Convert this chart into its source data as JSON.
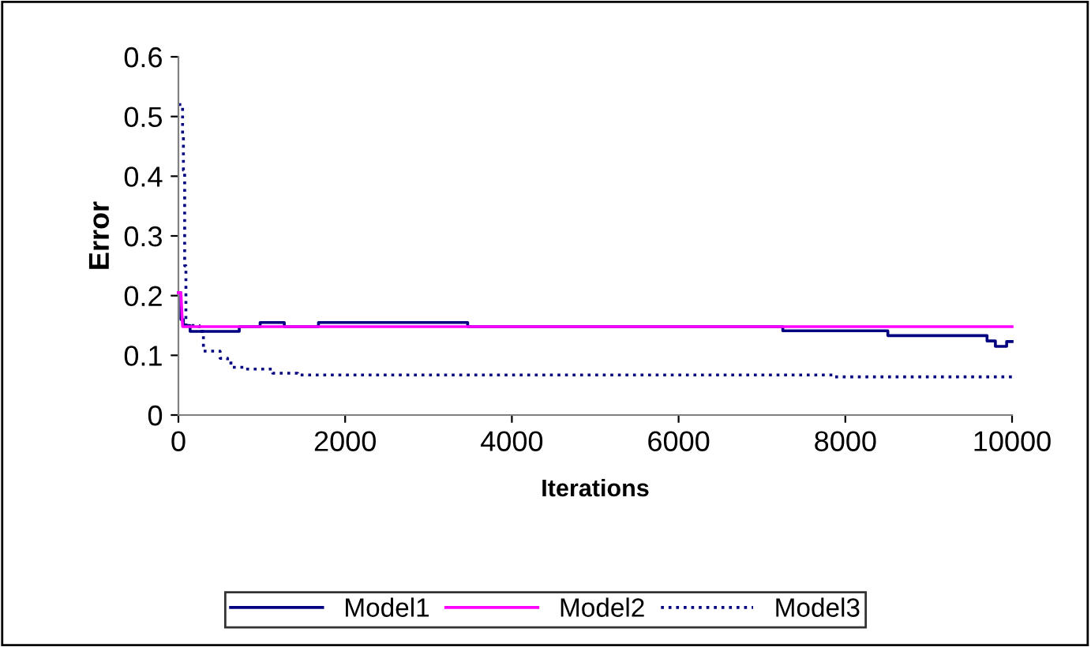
{
  "chart_data": {
    "type": "step",
    "xlabel": "Iterations",
    "ylabel": "Error",
    "xlim": [
      0,
      10000
    ],
    "xticks": [
      0,
      2000,
      4000,
      6000,
      8000,
      10000
    ],
    "ylim": [
      0,
      0.6
    ],
    "yticks": [
      0,
      0.1,
      0.2,
      0.3,
      0.4,
      0.5,
      0.6
    ],
    "grid": false,
    "legend": "bottom",
    "marker": "none",
    "series": [
      {
        "name": "Model1",
        "color": "#000080",
        "line_style": "solid",
        "x": [
          0,
          30,
          60,
          140,
          730,
          980,
          1270,
          1680,
          3470,
          7250,
          8510,
          9700,
          9800,
          9935,
          10000
        ],
        "values": [
          0.205,
          0.16,
          0.15,
          0.14,
          0.148,
          0.155,
          0.148,
          0.155,
          0.148,
          0.141,
          0.133,
          0.124,
          0.115,
          0.123,
          0.123
        ]
      },
      {
        "name": "Model2",
        "type": "line",
        "color": "#ff00ff",
        "line_style": "solid",
        "x": [
          0,
          30,
          50,
          10000
        ],
        "values": [
          0.205,
          0.205,
          0.148,
          0.148
        ]
      },
      {
        "name": "Model3",
        "color": "#000080",
        "line_style": "dotted",
        "x": [
          0,
          50,
          60,
          75,
          90,
          250,
          300,
          500,
          590,
          650,
          780,
          1130,
          1430,
          7870,
          10000
        ],
        "values": [
          0.52,
          0.466,
          0.41,
          0.25,
          0.15,
          0.14,
          0.107,
          0.095,
          0.087,
          0.08,
          0.077,
          0.07,
          0.067,
          0.064,
          0.064
        ]
      }
    ]
  }
}
